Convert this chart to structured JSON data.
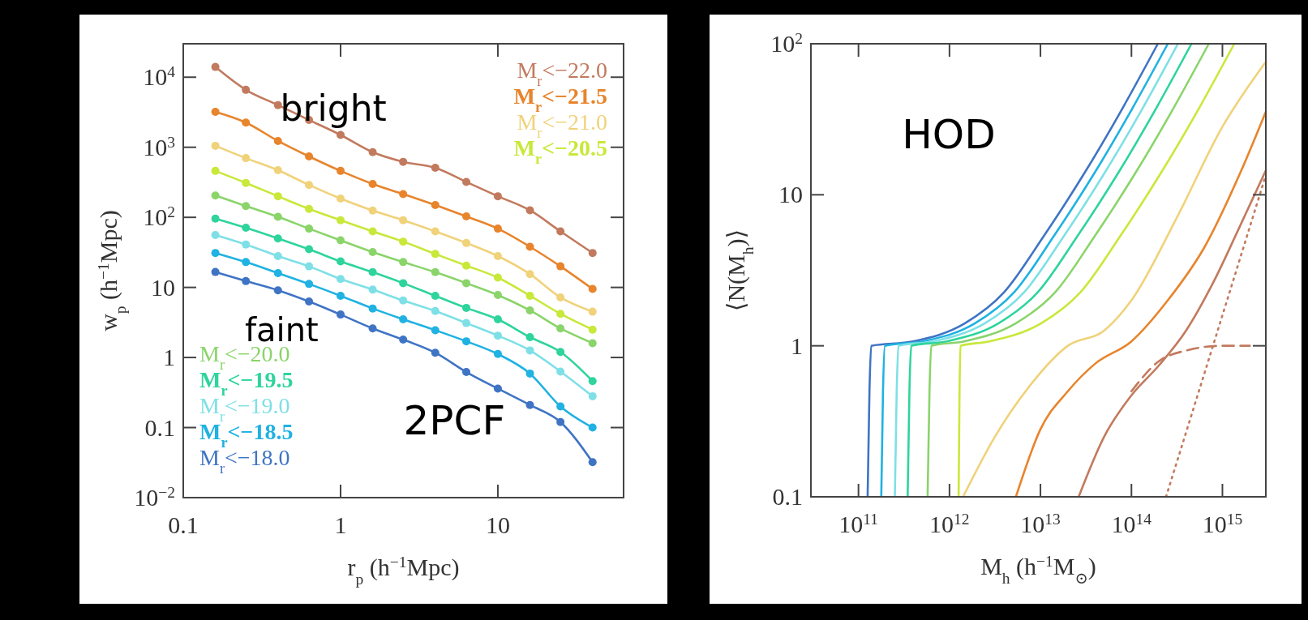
{
  "chart_data": [
    {
      "type": "line",
      "log": "xy",
      "xlabel": "r$_{p}$ (h$^{−1}$Mpc)",
      "ylabel": "w$_{p}$ (h$^{−1}$Mpc)",
      "xlim": [
        0.1,
        63
      ],
      "ylim": [
        0.01,
        30000
      ],
      "xticks": [
        0.1,
        1,
        10
      ],
      "yticks": [
        {
          "value": 0.01,
          "label": "10$^{−2}$"
        },
        0.1,
        1,
        10,
        {
          "value": 100,
          "label": "10$^{2}$"
        },
        {
          "value": 1000,
          "label": "10$^{3}$"
        },
        {
          "value": 10000,
          "label": "10$^{4}$"
        }
      ],
      "marker": "circle",
      "legend": "top right",
      "annotations": [
        "bright",
        "faint",
        "2PCF"
      ],
      "x": [
        0.16,
        0.25,
        0.4,
        0.63,
        1.0,
        1.6,
        2.5,
        4.0,
        6.3,
        10,
        16,
        25,
        40
      ],
      "series": [
        {
          "name": "M$_{r}$<−22.0",
          "color": "#c27a5e",
          "values": [
            14000,
            6600,
            4000,
            2450,
            1500,
            850,
            620,
            510,
            320,
            200,
            126,
            63,
            31
          ]
        },
        {
          "name": "M$_{r}$<−21.5",
          "color": "#e8842c",
          "values": [
            3200,
            2250,
            1230,
            740,
            460,
            300,
            215,
            150,
            103,
            69,
            38,
            20,
            9.5
          ]
        },
        {
          "name": "M$_{r}$<−21.0",
          "color": "#f0d27a",
          "values": [
            1050,
            700,
            470,
            290,
            185,
            125,
            91,
            63,
            43,
            28,
            15.5,
            7.2,
            4.5
          ]
        },
        {
          "name": "M$_{r}$<−20.5",
          "color": "#c8e83a",
          "values": [
            460,
            310,
            200,
            132,
            91,
            63,
            45,
            30,
            20.5,
            13.8,
            7.6,
            4.2,
            2.5
          ]
        },
        {
          "name": "M$_{r}$<−20.0",
          "color": "#8ad46a",
          "values": [
            205,
            145,
            102,
            69,
            47,
            32,
            23,
            16.5,
            11.5,
            7.8,
            4.7,
            2.6,
            1.6
          ]
        },
        {
          "name": "M$_{r}$<−19.5",
          "color": "#2ed49c",
          "values": [
            96,
            71,
            50,
            35,
            23.5,
            16.5,
            11.5,
            7.6,
            5.1,
            3.5,
            1.95,
            1.2,
            0.46
          ]
        },
        {
          "name": "M$_{r}$<−19.0",
          "color": "#7ee0e6",
          "values": [
            56,
            41,
            28,
            20,
            13.2,
            9.3,
            6.5,
            4.6,
            3.1,
            2.05,
            1.26,
            0.63,
            0.28
          ]
        },
        {
          "name": "M$_{r}$<−18.5",
          "color": "#1fb2e2",
          "values": [
            31,
            23,
            16,
            11.2,
            7.6,
            5.0,
            3.5,
            2.45,
            1.7,
            1.12,
            0.59,
            0.2,
            0.1
          ]
        },
        {
          "name": "M$_{r}$<−18.0",
          "color": "#3f74c4",
          "values": [
            16.6,
            12.3,
            9.1,
            6.3,
            4.1,
            2.6,
            1.8,
            1.17,
            0.62,
            0.36,
            0.21,
            0.12,
            0.032
          ]
        }
      ]
    },
    {
      "type": "line",
      "log": "xy",
      "xlabel": "M$_{h}$ (h$^{−1}$M$_{⊙}$)",
      "ylabel": "⟨N(M$_{h}$)⟩",
      "xlim": [
        30000000000.0,
        3000000000000000.0
      ],
      "ylim": [
        0.1,
        100
      ],
      "xticks": [
        {
          "value": 100000000000.0,
          "label": "10$^{11}$"
        },
        {
          "value": 1000000000000.0,
          "label": "10$^{12}$"
        },
        {
          "value": 10000000000000.0,
          "label": "10$^{13}$"
        },
        {
          "value": 100000000000000.0,
          "label": "10$^{14}$"
        },
        {
          "value": 1000000000000000.0,
          "label": "10$^{15}$"
        }
      ],
      "yticks": [
        0.1,
        1,
        10,
        {
          "value": 100,
          "label": "10$^{2}$"
        }
      ],
      "annotations": [
        "HOD"
      ],
      "series": [
        {
          "color": "#3f74c4",
          "x": [
            126000000000.0,
            132000000000.0,
            138000000000.0,
            398000000000.0,
            1480000000000.0,
            3980000000000.0,
            10700000000000.0,
            29500000000000.0,
            79400000000000.0,
            195000000000000.0
          ],
          "values": [
            0.1,
            0.5,
            1.0,
            1.07,
            1.41,
            2.26,
            5.25,
            13.5,
            37.2,
            100
          ]
        },
        {
          "color": "#1fb2e2",
          "x": [
            178000000000.0,
            186000000000.0,
            195000000000.0,
            513000000000.0,
            1910000000000.0,
            5130000000000.0,
            13800000000000.0,
            38000000000000.0,
            102000000000000.0,
            251000000000000.0
          ],
          "values": [
            0.1,
            0.5,
            1.0,
            1.07,
            1.41,
            2.26,
            5.25,
            13.5,
            37.2,
            100
          ]
        },
        {
          "color": "#7ee0e6",
          "x": [
            251000000000.0,
            263000000000.0,
            275000000000.0,
            661000000000.0,
            2450000000000.0,
            6610000000000.0,
            17800000000000.0,
            49000000000000.0,
            132000000000000.0,
            324000000000000.0
          ],
          "values": [
            0.1,
            0.5,
            1.0,
            1.07,
            1.41,
            2.26,
            5.25,
            13.5,
            37.2,
            100
          ]
        },
        {
          "color": "#2ed49c",
          "x": [
            347000000000.0,
            363000000000.0,
            380000000000.0,
            933000000000.0,
            3470000000000.0,
            9330000000000.0,
            25100000000000.0,
            69200000000000.0,
            186000000000000.0,
            457000000000000.0
          ],
          "values": [
            0.1,
            0.5,
            1.0,
            1.07,
            1.41,
            2.26,
            5.25,
            13.5,
            37.2,
            100
          ]
        },
        {
          "color": "#8ad46a",
          "x": [
            575000000000.0,
            603000000000.0,
            631000000000.0,
            1450000000000.0,
            5370000000000.0,
            14500000000000.0,
            38900000000000.0,
            107000000000000.0,
            288000000000000.0,
            708000000000000.0
          ],
          "values": [
            0.1,
            0.5,
            1.0,
            1.07,
            1.41,
            2.26,
            5.25,
            13.5,
            37.2,
            100
          ]
        },
        {
          "color": "#c8e83a",
          "x": [
            1260000000000.0,
            1290000000000.0,
            1320000000000.0,
            2750000000000.0,
            10200000000000.0,
            27500000000000.0,
            74100000000000.0,
            204000000000000.0,
            550000000000000.0,
            1350000000000000.0
          ],
          "values": [
            0.1,
            0.5,
            1.0,
            1.07,
            1.41,
            2.26,
            5.25,
            13.5,
            37.2,
            100
          ]
        },
        {
          "color": "#f0d27a",
          "x": [
            1410000000000.0,
            3160000000000.0,
            7940000000000.0,
            20000000000000.0,
            50100000000000.0,
            100000000000000.0,
            316000000000000.0,
            1000000000000000.0,
            3000000000000000.0
          ],
          "values": [
            0.1,
            0.25,
            0.56,
            1.0,
            1.26,
            2.0,
            7.08,
            28.2,
            75.9
          ]
        },
        {
          "color": "#e8842c",
          "x": [
            5370000000000.0,
            10000000000000.0,
            20000000000000.0,
            39800000000000.0,
            100000000000000.0,
            251000000000000.0,
            631000000000000.0,
            1580000000000000.0,
            3000000000000000.0
          ],
          "values": [
            0.1,
            0.28,
            0.5,
            0.76,
            1.07,
            2.0,
            4.47,
            14.1,
            35.5
          ]
        },
        {
          "color": "#c27a5e",
          "x": [
            26300000000000.0,
            50100000000000.0,
            100000000000000.0,
            200000000000000.0,
            398000000000000.0,
            794000000000000.0,
            1580000000000000.0,
            3000000000000000.0
          ],
          "values": [
            0.1,
            0.25,
            0.47,
            0.74,
            1.26,
            2.63,
            6.31,
            14.5
          ]
        },
        {
          "color": "#c27a5e",
          "line_style": "dashed",
          "x": [
            100000000000000.0,
            200000000000000.0,
            398000000000000.0,
            1000000000000000.0,
            2000000000000000.0
          ],
          "values": [
            0.5,
            0.79,
            0.93,
            1.0,
            1.0
          ]
        },
        {
          "color": "#c27a5e",
          "line_style": "dotted",
          "x": [
            240000000000000.0,
            850000000000000.0,
            3000000000000000.0
          ],
          "values": [
            0.1,
            1.16,
            13.5
          ]
        }
      ]
    }
  ]
}
